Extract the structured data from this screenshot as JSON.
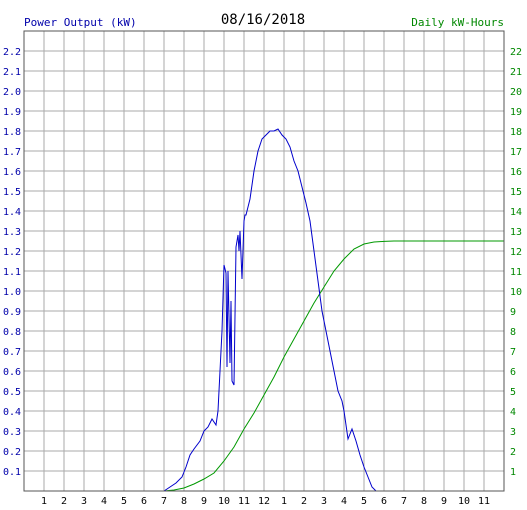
{
  "chart_data": {
    "type": "line",
    "title": "08/16/2018",
    "left_axis_label": "Power Output (kW)",
    "right_axis_label": "Daily kW-Hours",
    "x_tick_labels": [
      "1",
      "2",
      "3",
      "4",
      "5",
      "6",
      "7",
      "8",
      "9",
      "10",
      "11",
      "12",
      "1",
      "2",
      "3",
      "4",
      "5",
      "6",
      "7",
      "8",
      "9",
      "10",
      "11"
    ],
    "x_range": [
      0,
      24
    ],
    "ylim_left": [
      0,
      2.3
    ],
    "ylim_right": [
      0,
      23
    ],
    "y_ticks_left": [
      "0.1",
      "0.2",
      "0.3",
      "0.4",
      "0.5",
      "0.6",
      "0.7",
      "0.8",
      "0.9",
      "1.0",
      "1.1",
      "1.2",
      "1.3",
      "1.4",
      "1.5",
      "1.6",
      "1.7",
      "1.8",
      "1.9",
      "2.0",
      "2.1",
      "2.2"
    ],
    "y_ticks_right": [
      "1",
      "2",
      "3",
      "4",
      "5",
      "6",
      "7",
      "8",
      "9",
      "10",
      "11",
      "12",
      "13",
      "14",
      "15",
      "16",
      "17",
      "18",
      "19",
      "20",
      "21",
      "22"
    ],
    "grid": true,
    "colors": {
      "left_axis": "#0000aa",
      "right_axis": "#008800",
      "power_line": "#0000cc",
      "energy_line": "#009900",
      "grid": "#aaaaaa",
      "title": "#000000"
    },
    "series": [
      {
        "axis": "left",
        "x": [
          6.0,
          6.5,
          7.0,
          7.3,
          7.6,
          7.9,
          8.1,
          8.3,
          8.5,
          8.8,
          9.0,
          9.2,
          9.4,
          9.6,
          9.7,
          9.8,
          9.9,
          10.0,
          10.1,
          10.15,
          10.2,
          10.3,
          10.35,
          10.4,
          10.5,
          10.6,
          10.7,
          10.75,
          10.8,
          10.9,
          11.0,
          11.05,
          11.1,
          11.2,
          11.3,
          11.5,
          11.7,
          11.9,
          12.1,
          12.3,
          12.5,
          12.7,
          12.9,
          13.1,
          13.3,
          13.5,
          13.7,
          13.9,
          14.1,
          14.3,
          14.5,
          14.7,
          14.9,
          15.1,
          15.3,
          15.5,
          15.7,
          15.9,
          16.0,
          16.2,
          16.4,
          16.6,
          16.8,
          17.0,
          17.2,
          17.4,
          17.6,
          17.8,
          18.0,
          18.1,
          18.2,
          18.3,
          18.5,
          18.7,
          18.9,
          19.1,
          19.3,
          19.5,
          24.0
        ],
        "y": [
          0.0,
          0.0,
          0.0,
          0.02,
          0.04,
          0.07,
          0.12,
          0.18,
          0.21,
          0.25,
          0.3,
          0.32,
          0.36,
          0.33,
          0.4,
          0.6,
          0.8,
          1.13,
          1.09,
          0.62,
          1.1,
          0.64,
          0.95,
          0.55,
          0.53,
          1.22,
          1.28,
          1.2,
          1.3,
          1.06,
          1.35,
          1.38,
          1.38,
          1.42,
          1.46,
          1.6,
          1.7,
          1.76,
          1.78,
          1.8,
          1.8,
          1.81,
          1.78,
          1.76,
          1.72,
          1.65,
          1.6,
          1.52,
          1.44,
          1.35,
          1.2,
          1.05,
          0.9,
          0.8,
          0.7,
          0.6,
          0.5,
          0.45,
          0.4,
          0.26,
          0.31,
          0.25,
          0.18,
          0.12,
          0.07,
          0.02,
          0.0,
          0.0,
          0.0,
          0.0,
          0.0,
          0.0,
          0.0,
          0.0,
          0.0,
          0.0,
          0.0,
          0.0,
          0.0
        ],
        "color": "#0000cc"
      },
      {
        "axis": "right",
        "x": [
          6.0,
          7.0,
          7.5,
          8.0,
          8.5,
          9.0,
          9.5,
          10.0,
          10.5,
          11.0,
          11.5,
          12.0,
          12.5,
          13.0,
          13.5,
          14.0,
          14.5,
          15.0,
          15.5,
          16.0,
          16.5,
          17.0,
          17.5,
          18.0,
          18.5,
          19.0,
          20.0,
          22.0,
          24.0
        ],
        "y": [
          0.0,
          0.0,
          0.05,
          0.15,
          0.35,
          0.6,
          0.9,
          1.5,
          2.2,
          3.1,
          3.9,
          4.8,
          5.7,
          6.7,
          7.6,
          8.5,
          9.4,
          10.2,
          11.0,
          11.6,
          12.1,
          12.35,
          12.45,
          12.48,
          12.5,
          12.5,
          12.5,
          12.5,
          12.5
        ],
        "color": "#009900"
      }
    ]
  }
}
